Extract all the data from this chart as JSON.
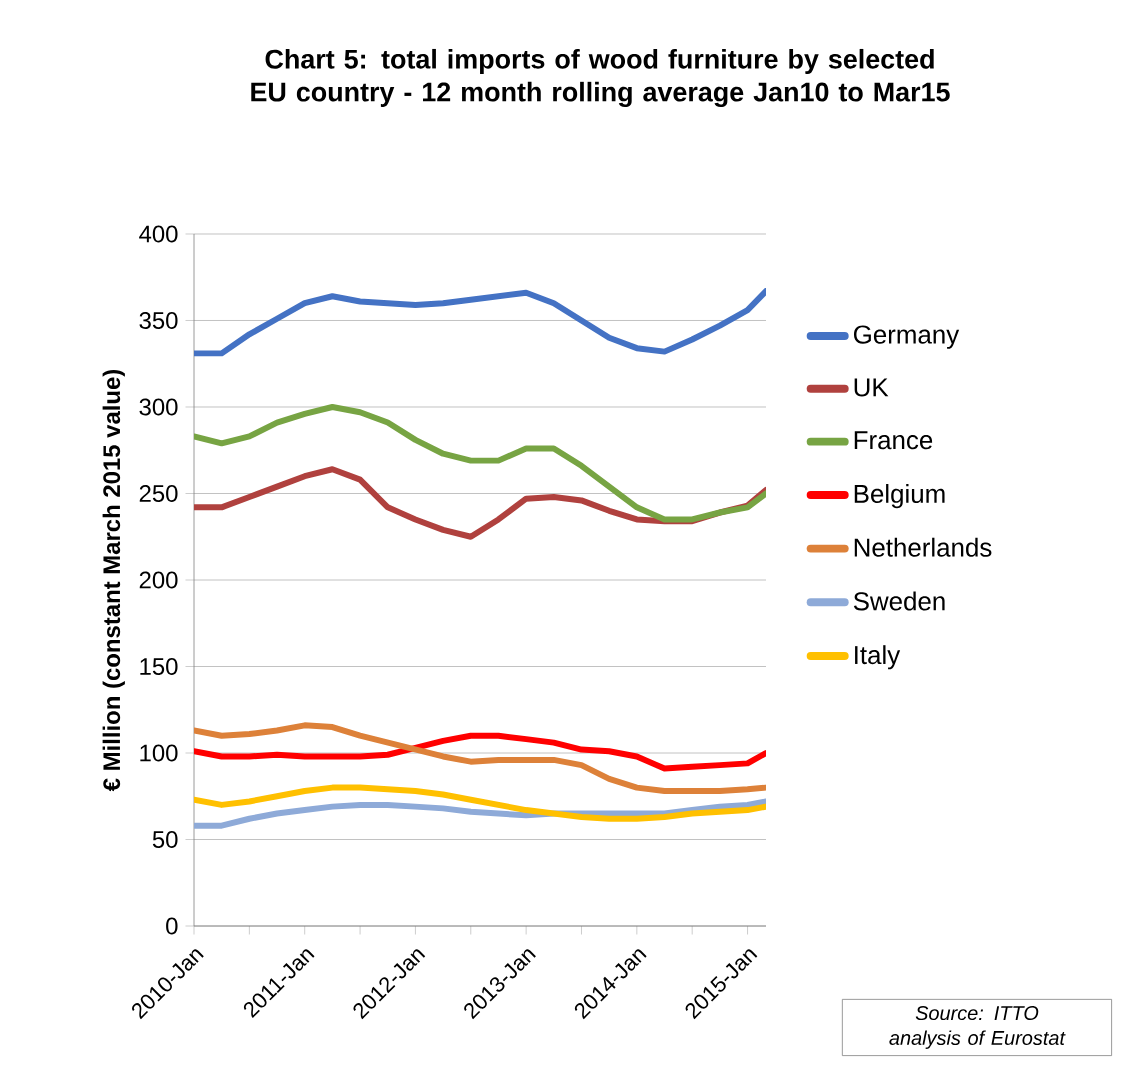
{
  "chart_data": {
    "type": "line",
    "title": "Chart 5: total imports of wood furniture by selected EU country - 12 month rolling average Jan10 to Mar15",
    "ylabel": "€ Million (constant March 2015 value)",
    "x": [
      "2010-01",
      "2010-04",
      "2010-07",
      "2010-10",
      "2011-01",
      "2011-04",
      "2011-07",
      "2011-10",
      "2012-01",
      "2012-04",
      "2012-07",
      "2012-10",
      "2013-01",
      "2013-04",
      "2013-07",
      "2013-10",
      "2014-01",
      "2014-04",
      "2014-07",
      "2014-10",
      "2015-01",
      "2015-03"
    ],
    "series": [
      {
        "name": "Germany",
        "color": "#4472c4",
        "values": [
          331,
          331,
          342,
          351,
          360,
          364,
          361,
          360,
          359,
          360,
          362,
          364,
          366,
          360,
          350,
          340,
          334,
          332,
          339,
          347,
          356,
          367
        ]
      },
      {
        "name": "UK",
        "color": "#b0413e",
        "values": [
          242,
          242,
          248,
          254,
          260,
          264,
          258,
          242,
          235,
          229,
          225,
          235,
          247,
          248,
          246,
          240,
          235,
          234,
          234,
          239,
          243,
          252
        ]
      },
      {
        "name": "France",
        "color": "#77a443",
        "values": [
          283,
          279,
          283,
          291,
          296,
          300,
          297,
          291,
          281,
          273,
          269,
          269,
          276,
          276,
          266,
          254,
          242,
          235,
          235,
          239,
          242,
          250
        ]
      },
      {
        "name": "Belgium",
        "color": "#ff0000",
        "values": [
          101,
          98,
          98,
          99,
          98,
          98,
          98,
          99,
          103,
          107,
          110,
          110,
          108,
          106,
          102,
          101,
          98,
          91,
          92,
          93,
          94,
          100
        ]
      },
      {
        "name": "Netherlands",
        "color": "#dd8139",
        "values": [
          113,
          110,
          111,
          113,
          116,
          115,
          110,
          106,
          102,
          98,
          95,
          96,
          96,
          96,
          93,
          85,
          80,
          78,
          78,
          78,
          79,
          80
        ]
      },
      {
        "name": "Sweden",
        "color": "#8eaad8",
        "values": [
          58,
          58,
          62,
          65,
          67,
          69,
          70,
          70,
          69,
          68,
          66,
          65,
          64,
          65,
          65,
          65,
          65,
          65,
          67,
          69,
          70,
          72
        ]
      },
      {
        "name": "Italy",
        "color": "#ffc000",
        "values": [
          73,
          70,
          72,
          75,
          78,
          80,
          80,
          79,
          78,
          76,
          73,
          70,
          67,
          65,
          63,
          62,
          62,
          63,
          65,
          66,
          67,
          69
        ]
      }
    ],
    "xlim": [
      "2010-01",
      "2015-03"
    ],
    "xticks": [
      {
        "value": "2010-01",
        "label": "2010-Jan"
      },
      {
        "value": "2010-07",
        "label": null
      },
      {
        "value": "2011-01",
        "label": "2011-Jan"
      },
      {
        "value": "2011-07",
        "label": null
      },
      {
        "value": "2012-01",
        "label": "2012-Jan"
      },
      {
        "value": "2012-07",
        "label": null
      },
      {
        "value": "2013-01",
        "label": "2013-Jan"
      },
      {
        "value": "2013-07",
        "label": null
      },
      {
        "value": "2014-01",
        "label": "2014-Jan"
      },
      {
        "value": "2014-07",
        "label": null
      },
      {
        "value": "2015-01",
        "label": "2015-Jan"
      }
    ],
    "ylim": [
      0,
      400
    ],
    "yticks": [
      0,
      50,
      100,
      150,
      200,
      250,
      300,
      350,
      400
    ],
    "grid": "y",
    "legend": "right",
    "marker": "none",
    "line_style": "solid",
    "annotations": [
      "Source: ITTO analysis of Eurostat"
    ]
  }
}
